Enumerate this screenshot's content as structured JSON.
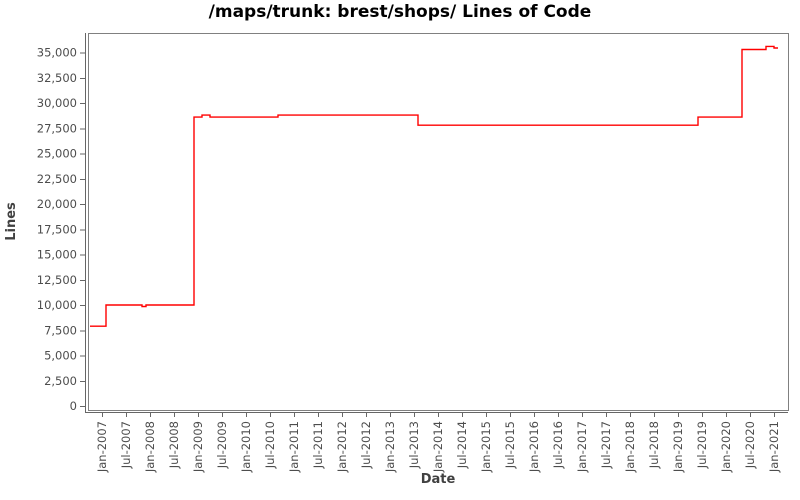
{
  "title": "/maps/trunk: brest/shops/ Lines of Code",
  "colors": {
    "line": "#ff0000",
    "plot_border": "#808080",
    "axis_line": "#666666",
    "tick_mark": "#666666",
    "tick_label": "#4d4d4d",
    "axis_label": "#404040",
    "title_text": "#000000",
    "background": "#ffffff"
  },
  "chart_data": {
    "type": "line",
    "step": "after",
    "title": "/maps/trunk: brest/shops/ Lines of Code",
    "xlabel": "Date",
    "ylabel": "Lines",
    "legend": "none",
    "grid": false,
    "ylim": [
      0,
      36500
    ],
    "y_ticks": [
      0,
      2500,
      5000,
      7500,
      10000,
      12500,
      15000,
      17500,
      20000,
      22500,
      25000,
      27500,
      30000,
      32500,
      35000
    ],
    "y_tick_labels": [
      "0",
      "2,500",
      "5,000",
      "7,500",
      "10,000",
      "12,500",
      "15,000",
      "17,500",
      "20,000",
      "22,500",
      "25,000",
      "27,500",
      "30,000",
      "32,500",
      "35,000"
    ],
    "x_tick_labels": [
      "Jan-2007",
      "Jul-2007",
      "Jan-2008",
      "Jul-2008",
      "Jan-2009",
      "Jul-2009",
      "Jan-2010",
      "Jul-2010",
      "Jan-2011",
      "Jul-2011",
      "Jan-2012",
      "Jul-2012",
      "Jan-2013",
      "Jul-2013",
      "Jan-2014",
      "Jul-2014",
      "Jan-2015",
      "Jul-2015",
      "Jan-2016",
      "Jul-2016",
      "Jan-2017",
      "Jul-2017",
      "Jan-2018",
      "Jul-2018",
      "Jan-2019",
      "Jul-2019",
      "Jan-2020",
      "Jul-2020",
      "Jan-2021"
    ],
    "series": [
      {
        "name": "Lines of Code",
        "points": [
          [
            "2006-10",
            7900
          ],
          [
            "2007-02",
            10000
          ],
          [
            "2007-11",
            9850
          ],
          [
            "2007-12",
            10000
          ],
          [
            "2008-12",
            28600
          ],
          [
            "2009-02",
            28800
          ],
          [
            "2009-04",
            28600
          ],
          [
            "2010-09",
            28800
          ],
          [
            "2013-08",
            27800
          ],
          [
            "2019-06",
            28600
          ],
          [
            "2020-05",
            35300
          ],
          [
            "2020-11",
            35600
          ],
          [
            "2021-01",
            35450
          ],
          [
            "2021-02",
            35450
          ]
        ]
      }
    ]
  }
}
